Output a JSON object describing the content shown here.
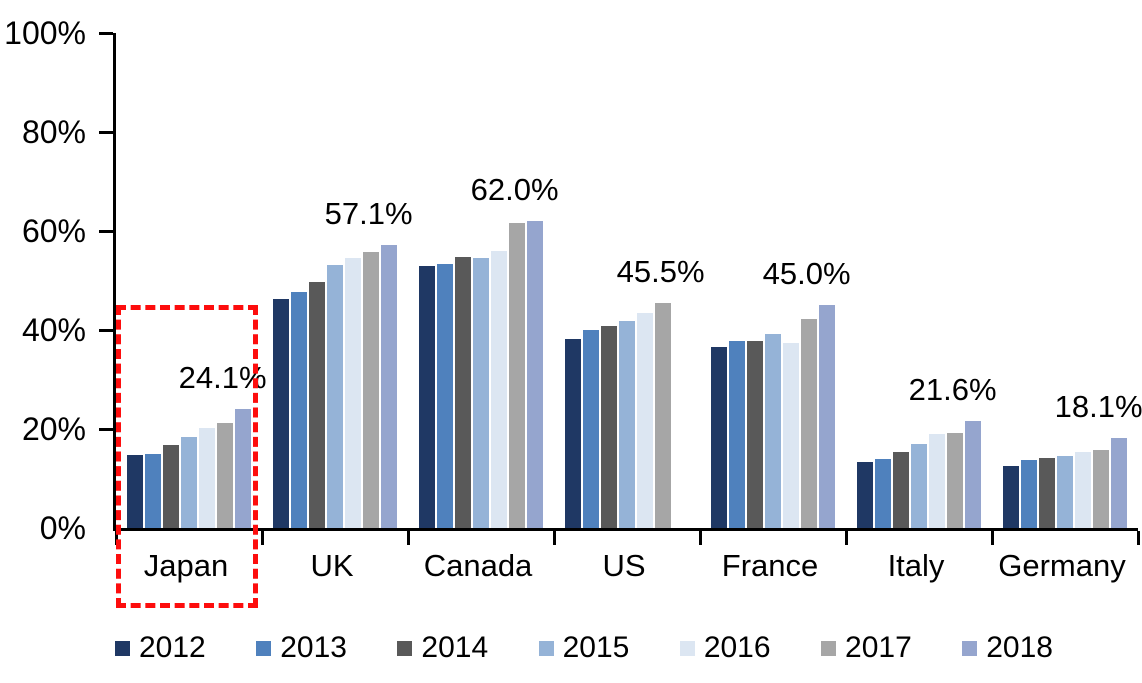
{
  "chart_data": {
    "type": "bar",
    "title": "",
    "xlabel": "",
    "ylabel": "",
    "ylim": [
      0,
      100
    ],
    "grid": false,
    "legend_position": "bottom",
    "y_tick_labels": [
      "0%",
      "20%",
      "40%",
      "60%",
      "80%",
      "100%"
    ],
    "y_tick_values": [
      0,
      20,
      40,
      60,
      80,
      100
    ],
    "categories": [
      "Japan",
      "UK",
      "Canada",
      "US",
      "France",
      "Italy",
      "Germany"
    ],
    "series": [
      {
        "name": "2012",
        "color": "#1F3864",
        "values": [
          14.8,
          46.3,
          53.0,
          38.2,
          36.5,
          13.3,
          12.5
        ]
      },
      {
        "name": "2013",
        "color": "#4F81BD",
        "values": [
          15.0,
          47.7,
          53.4,
          40.1,
          37.7,
          14.0,
          13.8
        ]
      },
      {
        "name": "2014",
        "color": "#595959",
        "values": [
          16.8,
          49.8,
          54.8,
          40.9,
          37.7,
          15.4,
          14.2
        ]
      },
      {
        "name": "2015",
        "color": "#95B3D7",
        "values": [
          18.4,
          53.2,
          54.6,
          41.9,
          39.2,
          16.9,
          14.6
        ]
      },
      {
        "name": "2016",
        "color": "#DCE6F2",
        "values": [
          20.2,
          54.6,
          56.0,
          43.5,
          37.3,
          19.0,
          15.3
        ]
      },
      {
        "name": "2017",
        "color": "#A6A6A6",
        "values": [
          21.2,
          55.7,
          61.6,
          45.5,
          42.3,
          19.1,
          15.8
        ]
      },
      {
        "name": "2018",
        "color": "#95A5CE",
        "values": [
          24.1,
          57.1,
          62.0,
          null,
          45.0,
          21.6,
          18.1
        ]
      }
    ],
    "value_labels": [
      "24.1%",
      "57.1%",
      "62.0%",
      "45.5%",
      "45.0%",
      "21.6%",
      "18.1%"
    ],
    "annotations": {
      "highlight": {
        "category": "Japan",
        "style": "dashed-rectangle",
        "color": "#FF0000"
      }
    }
  }
}
